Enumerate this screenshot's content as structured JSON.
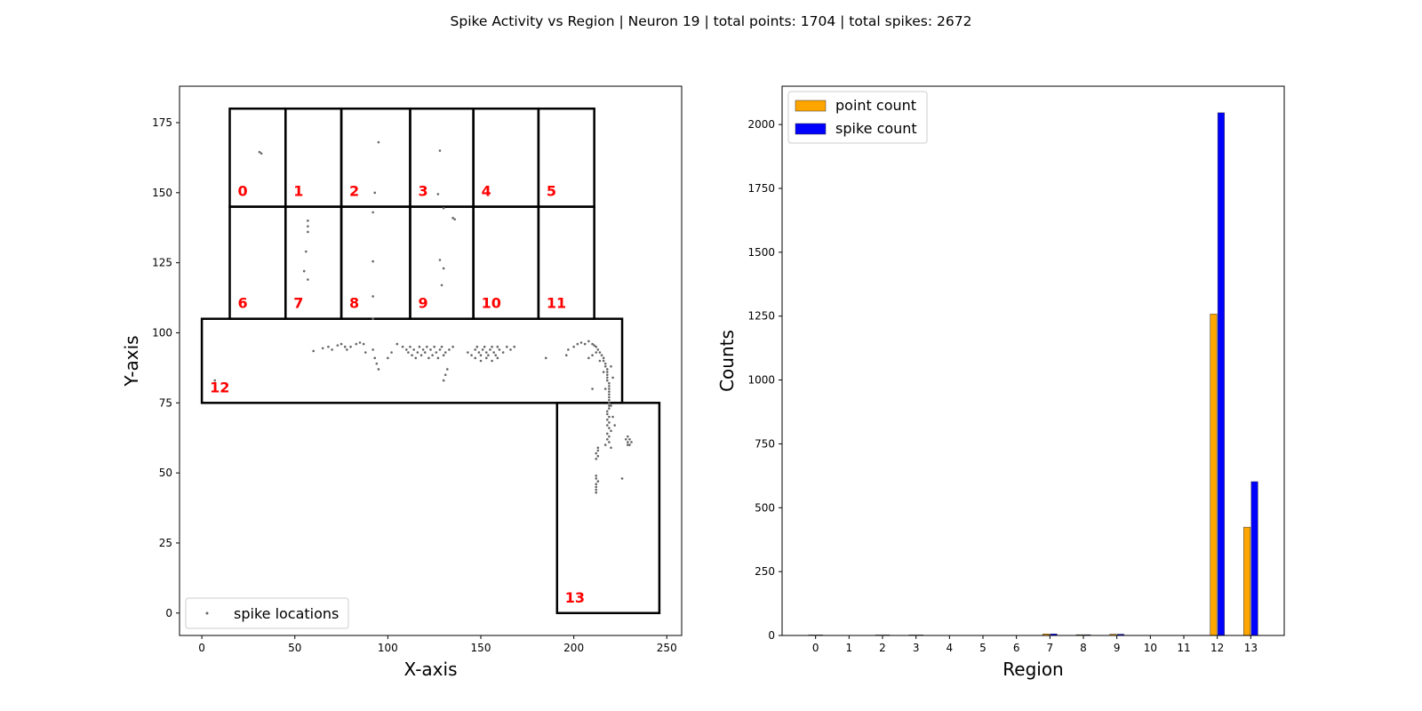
{
  "suptitle": "Spike Activity vs Region | Neuron 19 | total points: 1704 | total spikes: 2672",
  "chart_data": [
    {
      "type": "scatter",
      "xlabel": "X-axis",
      "ylabel": "Y-axis",
      "xlim": [
        -12,
        258
      ],
      "ylim": [
        -8,
        188
      ],
      "xticks": [
        "0",
        "50",
        "100",
        "150",
        "200",
        "250"
      ],
      "yticks": [
        "0",
        "25",
        "50",
        "75",
        "100",
        "125",
        "150",
        "175"
      ],
      "legend": {
        "label": "spike locations",
        "placement": "lower-left"
      },
      "colors": {
        "points": "#666666",
        "region_label": "#ff0000",
        "outline": "#000000"
      },
      "regions": [
        {
          "label": "0",
          "x": [
            15,
            45
          ],
          "y": [
            145,
            180
          ]
        },
        {
          "label": "1",
          "x": [
            45,
            75
          ],
          "y": [
            145,
            180
          ]
        },
        {
          "label": "2",
          "x": [
            75,
            112
          ],
          "y": [
            145,
            180
          ]
        },
        {
          "label": "3",
          "x": [
            112,
            146
          ],
          "y": [
            145,
            180
          ]
        },
        {
          "label": "4",
          "x": [
            146,
            181
          ],
          "y": [
            145,
            180
          ]
        },
        {
          "label": "5",
          "x": [
            181,
            211
          ],
          "y": [
            145,
            180
          ]
        },
        {
          "label": "6",
          "x": [
            15,
            45
          ],
          "y": [
            105,
            145
          ]
        },
        {
          "label": "7",
          "x": [
            45,
            75
          ],
          "y": [
            105,
            145
          ]
        },
        {
          "label": "8",
          "x": [
            75,
            112
          ],
          "y": [
            105,
            145
          ]
        },
        {
          "label": "9",
          "x": [
            112,
            146
          ],
          "y": [
            105,
            145
          ]
        },
        {
          "label": "10",
          "x": [
            146,
            181
          ],
          "y": [
            105,
            145
          ]
        },
        {
          "label": "11",
          "x": [
            181,
            211
          ],
          "y": [
            105,
            145
          ]
        },
        {
          "label": "12",
          "x": [
            0,
            226
          ],
          "y": [
            75,
            105
          ]
        },
        {
          "label": "13",
          "x": [
            191,
            246
          ],
          "y": [
            0,
            75
          ]
        }
      ],
      "points": [
        [
          31,
          164.5
        ],
        [
          32,
          164
        ],
        [
          95,
          168
        ],
        [
          128,
          165
        ],
        [
          93,
          150
        ],
        [
          127,
          149.5
        ],
        [
          57,
          140
        ],
        [
          57,
          138
        ],
        [
          57,
          136
        ],
        [
          56,
          129
        ],
        [
          55,
          122
        ],
        [
          57,
          119
        ],
        [
          92,
          143
        ],
        [
          92,
          125.5
        ],
        [
          92,
          113
        ],
        [
          92,
          105
        ],
        [
          130,
          144.5
        ],
        [
          135,
          141
        ],
        [
          136,
          140.5
        ],
        [
          128,
          126
        ],
        [
          130,
          123
        ],
        [
          129,
          117
        ],
        [
          60,
          93.5
        ],
        [
          65,
          94.5
        ],
        [
          68,
          95
        ],
        [
          70,
          94
        ],
        [
          73,
          95.5
        ],
        [
          75,
          96
        ],
        [
          77,
          95
        ],
        [
          78,
          94
        ],
        [
          80,
          95
        ],
        [
          83,
          96
        ],
        [
          85,
          96.5
        ],
        [
          87,
          96
        ],
        [
          88,
          93
        ],
        [
          92,
          94
        ],
        [
          93,
          91
        ],
        [
          94,
          89
        ],
        [
          95,
          87
        ],
        [
          100,
          91
        ],
        [
          102,
          93
        ],
        [
          105,
          96
        ],
        [
          108,
          95
        ],
        [
          110,
          94
        ],
        [
          111,
          93
        ],
        [
          112,
          95
        ],
        [
          113,
          92
        ],
        [
          114,
          94
        ],
        [
          115,
          91
        ],
        [
          116,
          93
        ],
        [
          117,
          95
        ],
        [
          118,
          92
        ],
        [
          119,
          94
        ],
        [
          120,
          93
        ],
        [
          121,
          95
        ],
        [
          122,
          91
        ],
        [
          123,
          94
        ],
        [
          124,
          92
        ],
        [
          125,
          95
        ],
        [
          126,
          93
        ],
        [
          127,
          91
        ],
        [
          128,
          94
        ],
        [
          129,
          95
        ],
        [
          130,
          92
        ],
        [
          131,
          93
        ],
        [
          133,
          94
        ],
        [
          135,
          95
        ],
        [
          131,
          85
        ],
        [
          130,
          83
        ],
        [
          132,
          87
        ],
        [
          143,
          93
        ],
        [
          145,
          92
        ],
        [
          147,
          94
        ],
        [
          148,
          95
        ],
        [
          149,
          93
        ],
        [
          150,
          92
        ],
        [
          151,
          94
        ],
        [
          152,
          95
        ],
        [
          153,
          93
        ],
        [
          154,
          92
        ],
        [
          155,
          94
        ],
        [
          156,
          95
        ],
        [
          157,
          93
        ],
        [
          158,
          92
        ],
        [
          159,
          95
        ],
        [
          160,
          94
        ],
        [
          162,
          93
        ],
        [
          164,
          95
        ],
        [
          166,
          94
        ],
        [
          168,
          95
        ],
        [
          147,
          91
        ],
        [
          150,
          90
        ],
        [
          153,
          91
        ],
        [
          156,
          90
        ],
        [
          159,
          91
        ],
        [
          185,
          91
        ],
        [
          196,
          92
        ],
        [
          197,
          94
        ],
        [
          200,
          95
        ],
        [
          202,
          96
        ],
        [
          204,
          96.5
        ],
        [
          206,
          96
        ],
        [
          208,
          97
        ],
        [
          210,
          96
        ],
        [
          211,
          95.5
        ],
        [
          212,
          95
        ],
        [
          213,
          94
        ],
        [
          214,
          93
        ],
        [
          215,
          92
        ],
        [
          216,
          91
        ],
        [
          216,
          90
        ],
        [
          217,
          89
        ],
        [
          217,
          88
        ],
        [
          218,
          87
        ],
        [
          218,
          86
        ],
        [
          218,
          85
        ],
        [
          218,
          84
        ],
        [
          218,
          83
        ],
        [
          219,
          82
        ],
        [
          219,
          81
        ],
        [
          219,
          80
        ],
        [
          219,
          79
        ],
        [
          219,
          78
        ],
        [
          219,
          77
        ],
        [
          219,
          76
        ],
        [
          219,
          75
        ],
        [
          219,
          74
        ],
        [
          219,
          73
        ],
        [
          218,
          72
        ],
        [
          218,
          71
        ],
        [
          219,
          70
        ],
        [
          218,
          69
        ],
        [
          219,
          68
        ],
        [
          218,
          67
        ],
        [
          219,
          66
        ],
        [
          220,
          65
        ],
        [
          218,
          64
        ],
        [
          219,
          63
        ],
        [
          218,
          62
        ],
        [
          219,
          61
        ],
        [
          217,
          60
        ],
        [
          220,
          59
        ],
        [
          212,
          93
        ],
        [
          210,
          92
        ],
        [
          208,
          91
        ],
        [
          214,
          90
        ],
        [
          216,
          86
        ],
        [
          220,
          88
        ],
        [
          221,
          84
        ],
        [
          217,
          80
        ],
        [
          220,
          74
        ],
        [
          221,
          70
        ],
        [
          222,
          67
        ],
        [
          210,
          80
        ],
        [
          228,
          62
        ],
        [
          229,
          61
        ],
        [
          230,
          60
        ],
        [
          229,
          63
        ],
        [
          230,
          62
        ],
        [
          231,
          61
        ],
        [
          229,
          60
        ],
        [
          213,
          59
        ],
        [
          213,
          58
        ],
        [
          212,
          57
        ],
        [
          213,
          56
        ],
        [
          212,
          55
        ],
        [
          212,
          49
        ],
        [
          212,
          48
        ],
        [
          213,
          47
        ],
        [
          212,
          46
        ],
        [
          212,
          45
        ],
        [
          212,
          44
        ],
        [
          212,
          43
        ],
        [
          226,
          48
        ],
        [
          7,
          83
        ]
      ]
    },
    {
      "type": "bar",
      "xlabel": "Region",
      "ylabel": "Counts",
      "categories": [
        "0",
        "1",
        "2",
        "3",
        "4",
        "5",
        "6",
        "7",
        "8",
        "9",
        "10",
        "11",
        "12",
        "13"
      ],
      "ylim": [
        0,
        2150
      ],
      "yticks": [
        "0",
        "250",
        "500",
        "750",
        "1000",
        "1250",
        "1500",
        "1750",
        "2000"
      ],
      "legend": {
        "placement": "top-left"
      },
      "series": [
        {
          "name": "point count",
          "color": "#ffa500",
          "values": [
            2,
            0,
            2,
            2,
            0,
            0,
            0,
            6,
            3,
            5,
            0,
            0,
            1258,
            424
          ]
        },
        {
          "name": "spike count",
          "color": "#0000ff",
          "values": [
            2,
            0,
            2,
            2,
            0,
            0,
            0,
            6,
            3,
            5,
            0,
            0,
            2046,
            602
          ]
        }
      ]
    }
  ]
}
